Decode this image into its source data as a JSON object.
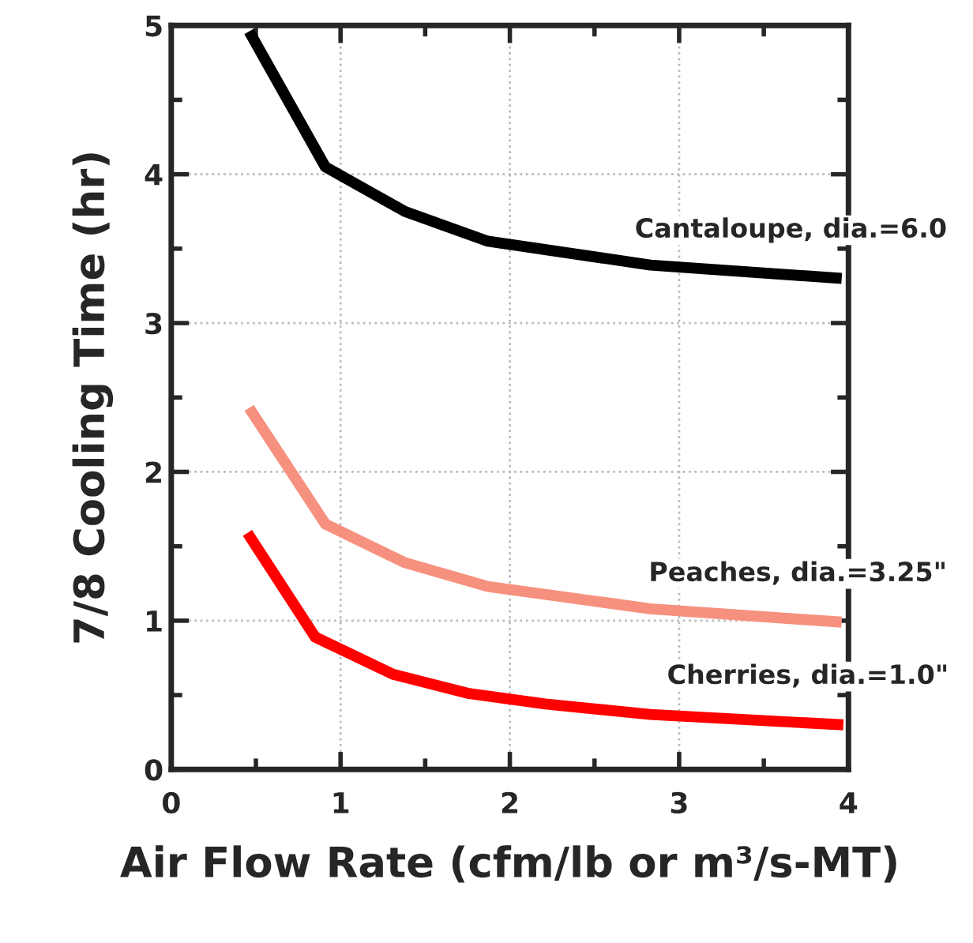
{
  "chart_data": {
    "type": "line",
    "xlabel": "Air Flow Rate (cfm/lb or m³/s-MT)",
    "ylabel": "7/8 Cooling Time (hr)",
    "xlim": [
      0,
      4
    ],
    "ylim": [
      0,
      5
    ],
    "xticks": [
      0,
      {
        "value": 0.5,
        "label": null
      },
      1,
      {
        "value": 1.5,
        "label": null
      },
      2,
      {
        "value": 2.5,
        "label": null
      },
      3,
      {
        "value": 3.5,
        "label": null
      },
      4
    ],
    "yticks": [
      0,
      {
        "value": 0.5,
        "label": null
      },
      1,
      {
        "value": 1.5,
        "label": null
      },
      2,
      {
        "value": 2.5,
        "label": null
      },
      3,
      {
        "value": 3.5,
        "label": null
      },
      4,
      {
        "value": 4.5,
        "label": null
      },
      5
    ],
    "grid": true,
    "legend": false,
    "marker": "none",
    "line_style": "solid",
    "series": [
      {
        "name": "Cantaloupe, dia.=6.0",
        "color": "#000000",
        "x": [
          0.46,
          0.91,
          1.38,
          1.87,
          2.83,
          3.96
        ],
        "values": [
          4.96,
          4.05,
          3.75,
          3.55,
          3.39,
          3.3
        ]
      },
      {
        "name": "Peaches, dia.=3.25\"",
        "color": "#f7917f",
        "x": [
          0.46,
          0.91,
          1.38,
          1.87,
          2.83,
          3.96
        ],
        "values": [
          2.43,
          1.65,
          1.39,
          1.23,
          1.08,
          0.99
        ]
      },
      {
        "name": "Cherries, dia.=1.0\"",
        "color": "#ff0000",
        "x": [
          0.45,
          0.85,
          1.31,
          1.76,
          2.21,
          2.83,
          3.97
        ],
        "values": [
          1.59,
          0.89,
          0.64,
          0.51,
          0.44,
          0.37,
          0.3
        ]
      }
    ]
  }
}
